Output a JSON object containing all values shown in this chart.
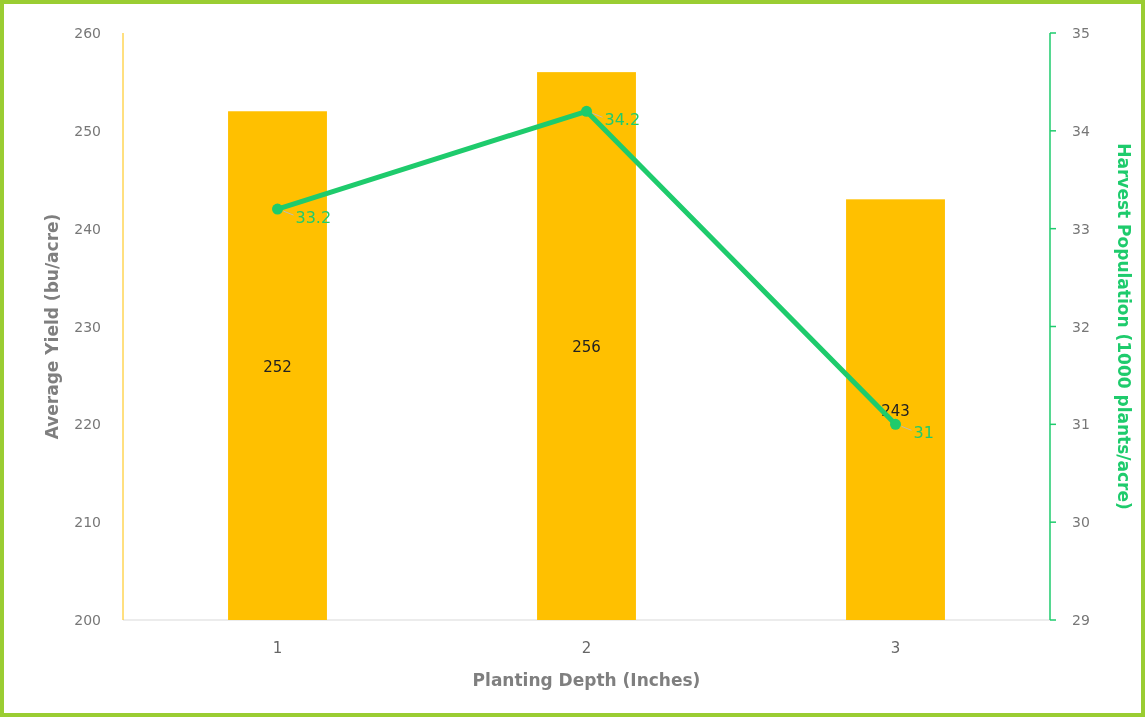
{
  "chart_data": {
    "type": "bar",
    "xlabel": "Planting Depth (Inches)",
    "ylabel": "Average Yield (bu/acre)",
    "y2label": "Harvest Population (1000 plants/acre)",
    "categories": [
      "1",
      "2",
      "3"
    ],
    "series": [
      {
        "color": "#ffc000",
        "values": [
          252,
          256,
          243
        ]
      },
      {
        "type": "line",
        "axis": "y2",
        "color": "#1ecb6c",
        "values": [
          33.2,
          34.2,
          31
        ],
        "marker": "circle"
      }
    ],
    "ylim": [
      200,
      260
    ],
    "yticks": [
      200,
      210,
      220,
      230,
      240,
      250,
      260
    ],
    "y2lim": [
      29,
      35
    ],
    "y2ticks": [
      29,
      30,
      31,
      32,
      33,
      34,
      35
    ],
    "data_labels": true,
    "grid": false
  }
}
